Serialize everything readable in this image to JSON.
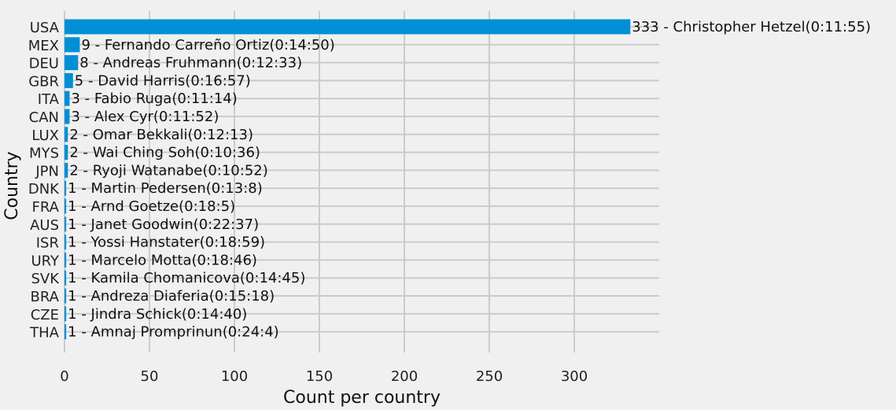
{
  "chart_data": {
    "type": "bar",
    "orientation": "horizontal",
    "xlabel": "Count per country",
    "ylabel": "Country",
    "xlim": [
      0,
      350
    ],
    "xticks": [
      0,
      50,
      100,
      150,
      200,
      250,
      300
    ],
    "grid": true,
    "bar_color": "#008fd5",
    "background": "#f0f0f0",
    "grid_color": "#cbcbcb",
    "categories": [
      "USA",
      "MEX",
      "DEU",
      "GBR",
      "ITA",
      "CAN",
      "LUX",
      "MYS",
      "JPN",
      "DNK",
      "FRA",
      "AUS",
      "ISR",
      "URY",
      "SVK",
      "BRA",
      "CZE",
      "THA"
    ],
    "values": [
      333,
      9,
      8,
      5,
      3,
      3,
      2,
      2,
      2,
      1,
      1,
      1,
      1,
      1,
      1,
      1,
      1,
      1
    ],
    "labels": [
      "333 - Christopher Hetzel(0:11:55)",
      "9 - Fernando Carreño Ortiz(0:14:50)",
      "8 - Andreas Fruhmann(0:12:33)",
      "5 - David Harris(0:16:57)",
      "3 - Fabio Ruga(0:11:14)",
      "3 - Alex Cyr(0:11:52)",
      "2 - Omar Bekkali(0:12:13)",
      "2 - Wai Ching Soh(0:10:36)",
      "2 - Ryoji Watanabe(0:10:52)",
      "1 - Martin Pedersen(0:13:8)",
      "1 - Arnd Goetze(0:18:5)",
      "1 - Janet Goodwin(0:22:37)",
      "1 - Yossi Hanstater(0:18:59)",
      "1 - Marcelo Motta(0:18:46)",
      "1 - Kamila Chomanicova(0:14:45)",
      "1 - Andreza Diaferia(0:15:18)",
      "1 - Jindra Schick(0:14:40)",
      "1 - Amnaj Promprinun(0:24:4)"
    ]
  }
}
